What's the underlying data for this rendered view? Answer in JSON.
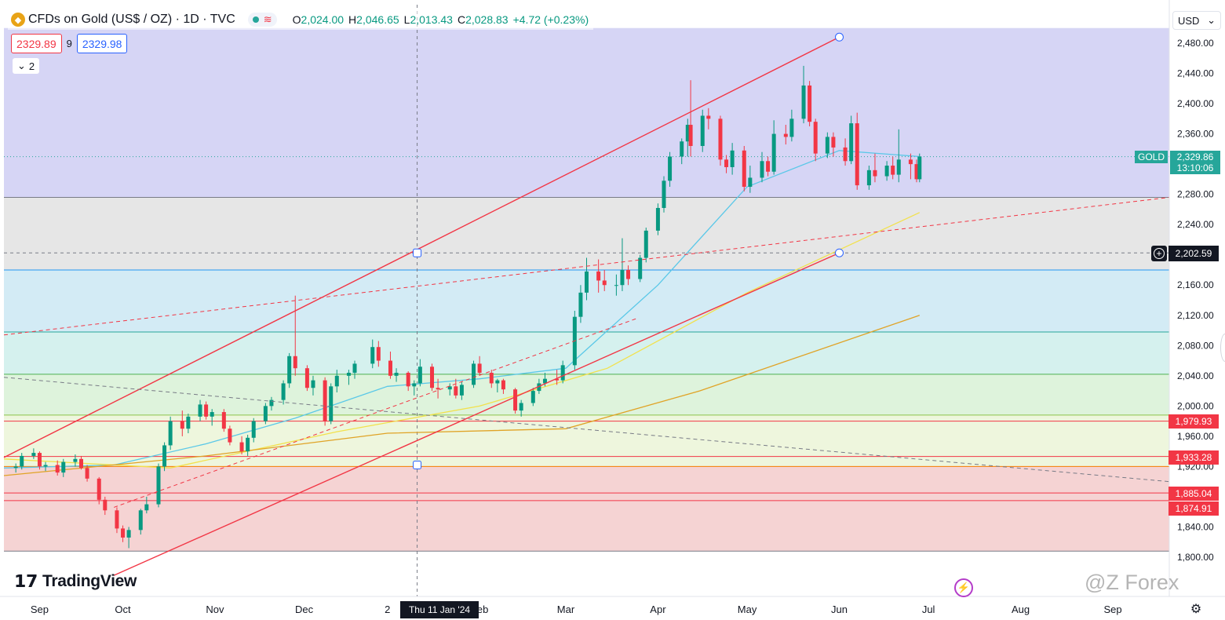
{
  "symbol": {
    "title": "CFDs on Gold (US$ / OZ) · 1D · TVC",
    "logo_icon": "gold-coin-icon",
    "market_status_icon": "market-open-dot-icon",
    "wave_icon": "wave-icon",
    "ohlc": {
      "o_label": "O",
      "o": "2,024.00",
      "h_label": "H",
      "h": "2,046.65",
      "l_label": "L",
      "l": "2,013.43",
      "c_label": "C",
      "c": "2,028.83",
      "change": "+4.72 (+0.23%)"
    }
  },
  "trade": {
    "sell": "2329.89",
    "spread": "9",
    "buy": "2329.98"
  },
  "indicators_toggle": "2",
  "currency": "USD",
  "price_axis": {
    "ticks": [
      "2,480.00",
      "2,440.00",
      "2,400.00",
      "2,360.00",
      "2,280.00",
      "2,240.00",
      "2,160.00",
      "2,120.00",
      "2,080.00",
      "2,040.00",
      "2,000.00",
      "1,960.00",
      "1,920.00",
      "1,840.00",
      "1,800.00"
    ],
    "gold_tag": "GOLD",
    "last_price": "2,329.86",
    "countdown": "13:10:06",
    "crosshair_price": "2,202.59",
    "red_labels": [
      "1,979.93",
      "1,933.28",
      "1,885.04",
      "1,874.91"
    ]
  },
  "time_axis": {
    "labels": [
      "Sep",
      "Oct",
      "Nov",
      "Dec",
      "2",
      "Feb",
      "Mar",
      "Apr",
      "May",
      "Jun",
      "Jul",
      "Aug",
      "Sep"
    ],
    "crosshair_date": "Thu 11 Jan '24"
  },
  "branding": {
    "tradingview": "TradingView",
    "watermark": "@Z Forex"
  },
  "colors": {
    "up": "#089981",
    "down": "#f23645",
    "channel": "#f23645",
    "ma_fast": "#5ac8e8",
    "ma_mid": "#f2e14c",
    "ma_slow": "#e0a326"
  },
  "chart_data": {
    "type": "candlestick",
    "series": [
      {
        "name": "",
        "points": [
          [
            "2023-08-29",
            1918,
            1924,
            1912,
            1920
          ],
          [
            "2023-08-31",
            1920,
            1938,
            1916,
            1934
          ],
          [
            "2023-09-04",
            1934,
            1944,
            1930,
            1938
          ],
          [
            "2023-09-06",
            1938,
            1940,
            1916,
            1920
          ],
          [
            "2023-09-08",
            1920,
            1926,
            1914,
            1922
          ],
          [
            "2023-09-12",
            1922,
            1928,
            1908,
            1912
          ],
          [
            "2023-09-14",
            1912,
            1930,
            1906,
            1926
          ],
          [
            "2023-09-18",
            1926,
            1936,
            1920,
            1930
          ],
          [
            "2023-09-20",
            1930,
            1934,
            1916,
            1918
          ],
          [
            "2023-09-22",
            1918,
            1922,
            1900,
            1904
          ],
          [
            "2023-09-26",
            1904,
            1906,
            1870,
            1876
          ],
          [
            "2023-09-28",
            1876,
            1880,
            1856,
            1862
          ],
          [
            "2023-10-02",
            1862,
            1866,
            1832,
            1838
          ],
          [
            "2023-10-04",
            1838,
            1842,
            1820,
            1826
          ],
          [
            "2023-10-06",
            1826,
            1840,
            1812,
            1836
          ],
          [
            "2023-10-10",
            1836,
            1864,
            1830,
            1862
          ],
          [
            "2023-10-12",
            1862,
            1880,
            1858,
            1870
          ],
          [
            "2023-10-16",
            1870,
            1924,
            1866,
            1920
          ],
          [
            "2023-10-18",
            1920,
            1952,
            1914,
            1948
          ],
          [
            "2023-10-20",
            1948,
            1986,
            1942,
            1980
          ],
          [
            "2023-10-24",
            1980,
            1994,
            1960,
            1970
          ],
          [
            "2023-10-26",
            1970,
            1990,
            1964,
            1986
          ],
          [
            "2023-10-30",
            1986,
            2008,
            1980,
            2002
          ],
          [
            "2023-11-01",
            2002,
            2006,
            1982,
            1986
          ],
          [
            "2023-11-03",
            1986,
            1996,
            1974,
            1992
          ],
          [
            "2023-11-07",
            1992,
            1996,
            1966,
            1970
          ],
          [
            "2023-11-09",
            1970,
            1974,
            1948,
            1952
          ],
          [
            "2023-11-13",
            1952,
            1960,
            1936,
            1940
          ],
          [
            "2023-11-15",
            1940,
            1962,
            1934,
            1958
          ],
          [
            "2023-11-17",
            1958,
            1984,
            1952,
            1980
          ],
          [
            "2023-11-21",
            1980,
            2004,
            1976,
            2000
          ],
          [
            "2023-11-23",
            2000,
            2012,
            1994,
            2008
          ],
          [
            "2023-11-27",
            2008,
            2034,
            2002,
            2030
          ],
          [
            "2023-11-29",
            2030,
            2070,
            2024,
            2066
          ],
          [
            "2023-12-01",
            2066,
            2146,
            2040,
            2050
          ],
          [
            "2023-12-05",
            2050,
            2054,
            2020,
            2024
          ],
          [
            "2023-12-07",
            2024,
            2040,
            2014,
            2034
          ],
          [
            "2023-12-11",
            2034,
            2038,
            1974,
            1980
          ],
          [
            "2023-12-13",
            1980,
            2030,
            1976,
            2026
          ],
          [
            "2023-12-15",
            2026,
            2048,
            2018,
            2040
          ],
          [
            "2023-12-19",
            2040,
            2048,
            2028,
            2044
          ],
          [
            "2023-12-21",
            2044,
            2060,
            2036,
            2056
          ],
          [
            "2023-12-27",
            2056,
            2088,
            2050,
            2078
          ],
          [
            "2023-12-29",
            2078,
            2086,
            2052,
            2060
          ],
          [
            "2024-01-02",
            2060,
            2072,
            2036,
            2040
          ],
          [
            "2024-01-04",
            2040,
            2050,
            2032,
            2044
          ],
          [
            "2024-01-08",
            2044,
            2046,
            2020,
            2026
          ],
          [
            "2024-01-10",
            2026,
            2034,
            2014,
            2030
          ],
          [
            "2024-01-12",
            2030,
            2062,
            2026,
            2052
          ],
          [
            "2024-01-16",
            2052,
            2056,
            2020,
            2024
          ],
          [
            "2024-01-18",
            2024,
            2036,
            2010,
            2022
          ],
          [
            "2024-01-22",
            2022,
            2030,
            2014,
            2026
          ],
          [
            "2024-01-24",
            2026,
            2036,
            2010,
            2014
          ],
          [
            "2024-01-26",
            2014,
            2032,
            2008,
            2028
          ],
          [
            "2024-01-30",
            2028,
            2060,
            2024,
            2056
          ],
          [
            "2024-02-01",
            2056,
            2066,
            2040,
            2044
          ],
          [
            "2024-02-05",
            2044,
            2048,
            2024,
            2030
          ],
          [
            "2024-02-07",
            2030,
            2036,
            2018,
            2034
          ],
          [
            "2024-02-09",
            2034,
            2036,
            2016,
            2022
          ],
          [
            "2024-02-13",
            2022,
            2024,
            1990,
            1994
          ],
          [
            "2024-02-15",
            1994,
            2008,
            1986,
            2004
          ],
          [
            "2024-02-19",
            2004,
            2024,
            2000,
            2020
          ],
          [
            "2024-02-21",
            2020,
            2036,
            2016,
            2030
          ],
          [
            "2024-02-23",
            2030,
            2044,
            2026,
            2036
          ],
          [
            "2024-02-27",
            2036,
            2048,
            2028,
            2034
          ],
          [
            "2024-02-29",
            2034,
            2060,
            2030,
            2054
          ],
          [
            "2024-03-04",
            2054,
            2126,
            2048,
            2118
          ],
          [
            "2024-03-06",
            2118,
            2160,
            2110,
            2150
          ],
          [
            "2024-03-08",
            2150,
            2196,
            2140,
            2178
          ],
          [
            "2024-03-12",
            2178,
            2194,
            2150,
            2166
          ],
          [
            "2024-03-14",
            2166,
            2180,
            2152,
            2160
          ],
          [
            "2024-03-18",
            2160,
            2174,
            2146,
            2160
          ],
          [
            "2024-03-20",
            2160,
            2222,
            2152,
            2180
          ],
          [
            "2024-03-22",
            2180,
            2186,
            2160,
            2168
          ],
          [
            "2024-03-26",
            2168,
            2200,
            2164,
            2196
          ],
          [
            "2024-03-28",
            2196,
            2236,
            2190,
            2232
          ],
          [
            "2024-04-01",
            2232,
            2268,
            2226,
            2262
          ],
          [
            "2024-04-03",
            2262,
            2304,
            2256,
            2298
          ],
          [
            "2024-04-05",
            2298,
            2336,
            2290,
            2330
          ],
          [
            "2024-04-09",
            2330,
            2354,
            2320,
            2350
          ],
          [
            "2024-04-11",
            2350,
            2380,
            2330,
            2372
          ],
          [
            "2024-04-12",
            2372,
            2431,
            2330,
            2344
          ],
          [
            "2024-04-16",
            2344,
            2392,
            2336,
            2384
          ],
          [
            "2024-04-18",
            2384,
            2394,
            2366,
            2380
          ],
          [
            "2024-04-22",
            2380,
            2384,
            2318,
            2326
          ],
          [
            "2024-04-24",
            2326,
            2332,
            2308,
            2316
          ],
          [
            "2024-04-26",
            2316,
            2348,
            2306,
            2338
          ],
          [
            "2024-04-30",
            2338,
            2344,
            2284,
            2290
          ],
          [
            "2024-05-02",
            2290,
            2318,
            2282,
            2302
          ],
          [
            "2024-05-06",
            2302,
            2336,
            2296,
            2324
          ],
          [
            "2024-05-08",
            2324,
            2330,
            2304,
            2310
          ],
          [
            "2024-05-10",
            2310,
            2378,
            2306,
            2360
          ],
          [
            "2024-05-14",
            2360,
            2372,
            2346,
            2356
          ],
          [
            "2024-05-16",
            2356,
            2392,
            2350,
            2380
          ],
          [
            "2024-05-20",
            2380,
            2450,
            2374,
            2424
          ],
          [
            "2024-05-22",
            2424,
            2430,
            2370,
            2376
          ],
          [
            "2024-05-24",
            2376,
            2380,
            2324,
            2334
          ],
          [
            "2024-05-28",
            2334,
            2362,
            2328,
            2356
          ],
          [
            "2024-05-30",
            2356,
            2362,
            2330,
            2342
          ],
          [
            "2024-06-03",
            2342,
            2354,
            2318,
            2324
          ],
          [
            "2024-06-05",
            2324,
            2384,
            2320,
            2374
          ],
          [
            "2024-06-07",
            2374,
            2388,
            2286,
            2292
          ],
          [
            "2024-06-11",
            2292,
            2318,
            2286,
            2312
          ],
          [
            "2024-06-13",
            2312,
            2334,
            2296,
            2304
          ],
          [
            "2024-06-17",
            2304,
            2324,
            2298,
            2318
          ],
          [
            "2024-06-19",
            2318,
            2330,
            2300,
            2306
          ],
          [
            "2024-06-21",
            2306,
            2366,
            2296,
            2326
          ],
          [
            "2024-06-25",
            2326,
            2334,
            2300,
            2320
          ],
          [
            "2024-06-27",
            2320,
            2326,
            2296,
            2300
          ],
          [
            "2024-06-28",
            2300,
            2334,
            2296,
            2330
          ]
        ]
      }
    ],
    "ohlc_order": [
      "date",
      "open",
      "high",
      "low",
      "close"
    ],
    "x_range": [
      "2023-08-25",
      "2024-09-20"
    ],
    "y_range": [
      1790,
      2500
    ],
    "moving_averages": [
      {
        "name": "",
        "color": "#5ac8e8",
        "points": [
          [
            "2023-08-25",
            1918
          ],
          [
            "2023-10-01",
            1922
          ],
          [
            "2023-11-01",
            1950
          ],
          [
            "2023-12-01",
            1984
          ],
          [
            "2024-01-01",
            2026
          ],
          [
            "2024-02-01",
            2036
          ],
          [
            "2024-03-01",
            2050
          ],
          [
            "2024-04-01",
            2160
          ],
          [
            "2024-05-01",
            2290
          ],
          [
            "2024-06-01",
            2338
          ],
          [
            "2024-06-28",
            2330
          ]
        ]
      },
      {
        "name": "",
        "color": "#f2e14c",
        "points": [
          [
            "2023-08-25",
            1930
          ],
          [
            "2023-10-20",
            1918
          ],
          [
            "2023-12-15",
            1966
          ],
          [
            "2024-02-01",
            2000
          ],
          [
            "2024-03-15",
            2050
          ],
          [
            "2024-05-01",
            2150
          ],
          [
            "2024-06-28",
            2256
          ]
        ]
      },
      {
        "name": "",
        "color": "#e0a326",
        "points": [
          [
            "2023-08-25",
            1908
          ],
          [
            "2023-11-01",
            1934
          ],
          [
            "2024-01-01",
            1964
          ],
          [
            "2024-03-01",
            1970
          ],
          [
            "2024-04-15",
            2020
          ],
          [
            "2024-06-28",
            2120
          ]
        ]
      }
    ],
    "horizontal_levels": [
      {
        "price": 2276,
        "color": "#787b86"
      },
      {
        "price": 2180,
        "color": "#2196f3"
      },
      {
        "price": 2098,
        "color": "#26a69a"
      },
      {
        "price": 2042,
        "color": "#4caf50"
      },
      {
        "price": 1988,
        "color": "#8bc34a"
      },
      {
        "price": 1979.93,
        "color": "#f23645"
      },
      {
        "price": 1933.28,
        "color": "#f23645"
      },
      {
        "price": 1920,
        "color": "#f57c00"
      },
      {
        "price": 1885.04,
        "color": "#f23645"
      },
      {
        "price": 1874.91,
        "color": "#f23645"
      },
      {
        "price": 1808,
        "color": "#787b86"
      }
    ],
    "zones": [
      {
        "from": 2276,
        "to": 2500,
        "color": "#d6d5f5"
      },
      {
        "from": 2180,
        "to": 2276,
        "color": "#e6e6e6"
      },
      {
        "from": 2098,
        "to": 2180,
        "color": "#d3ebf5"
      },
      {
        "from": 2042,
        "to": 2098,
        "color": "#d5f1ee"
      },
      {
        "from": 1988,
        "to": 2042,
        "color": "#def3dc"
      },
      {
        "from": 1920,
        "to": 1988,
        "color": "#eef6dd"
      },
      {
        "from": 1808,
        "to": 1920,
        "color": "#f5d3d3"
      }
    ],
    "trendlines": [
      {
        "from": [
          "2023-08-25",
          1932
        ],
        "to": [
          "2024-06-01",
          2488
        ],
        "color": "#f23645",
        "dash": false
      },
      {
        "from": [
          "2023-10-01",
          1776
        ],
        "to": [
          "2024-06-01",
          2202.59
        ],
        "color": "#f23645",
        "dash": false
      },
      {
        "from": [
          "2023-08-25",
          2094
        ],
        "to": [
          "2024-09-20",
          2276
        ],
        "color": "#f23645",
        "dash": true
      },
      {
        "from": [
          "2023-08-25",
          2038
        ],
        "to": [
          "2024-09-20",
          1900
        ],
        "color": "#787b86",
        "dash": true
      },
      {
        "from": [
          "2023-10-01",
          1866
        ],
        "to": [
          "2024-03-25",
          2116
        ],
        "color": "#f23645",
        "dash": true
      }
    ],
    "grid": false,
    "legend_position": "top-left"
  }
}
